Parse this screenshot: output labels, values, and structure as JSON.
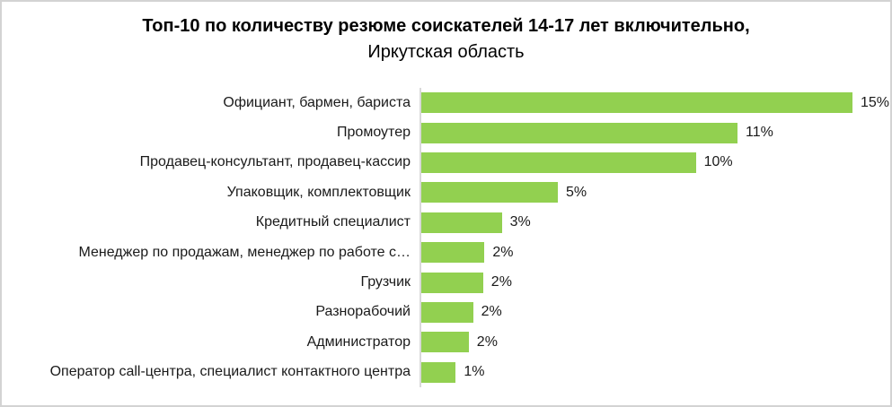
{
  "title": {
    "line1": "Топ-10 по количеству резюме соискателей 14-17 лет включительно,",
    "line2": "Иркутская область"
  },
  "chart_data": {
    "type": "bar",
    "orientation": "horizontal",
    "title": "Топ-10 по количеству резюме соискателей 14-17 лет включительно, Иркутская область",
    "categories": [
      "Официант, бармен, бариста",
      "Промоутер",
      "Продавец-консультант, продавец-кассир",
      "Упаковщик, комплектовщик",
      "Кредитный специалист",
      "Менеджер по продажам, менеджер по работе с…",
      "Грузчик",
      "Разнорабочий",
      "Администратор",
      "Оператор call-центра, специалист контактного центра"
    ],
    "values": [
      15,
      11,
      10,
      5,
      3,
      2,
      2,
      2,
      2,
      1
    ],
    "value_labels": [
      "15%",
      "11%",
      "10%",
      "5%",
      "3%",
      "2%",
      "2%",
      "2%",
      "2%",
      "1%"
    ],
    "values_precise_pct": [
      15.0,
      11.0,
      9.55,
      4.75,
      2.8,
      2.2,
      2.15,
      1.8,
      1.65,
      1.2
    ],
    "xlabel": "",
    "ylabel": "",
    "xlim": [
      0,
      16.5
    ],
    "grid": false,
    "legend": false,
    "data_labels": "outside-end",
    "bar_color": "#92D050",
    "axis_line_color": "#d9d9d9",
    "text_color": "#1a1a1a",
    "background_color": "#ffffff",
    "frame_border_color": "#d3d3d3"
  }
}
